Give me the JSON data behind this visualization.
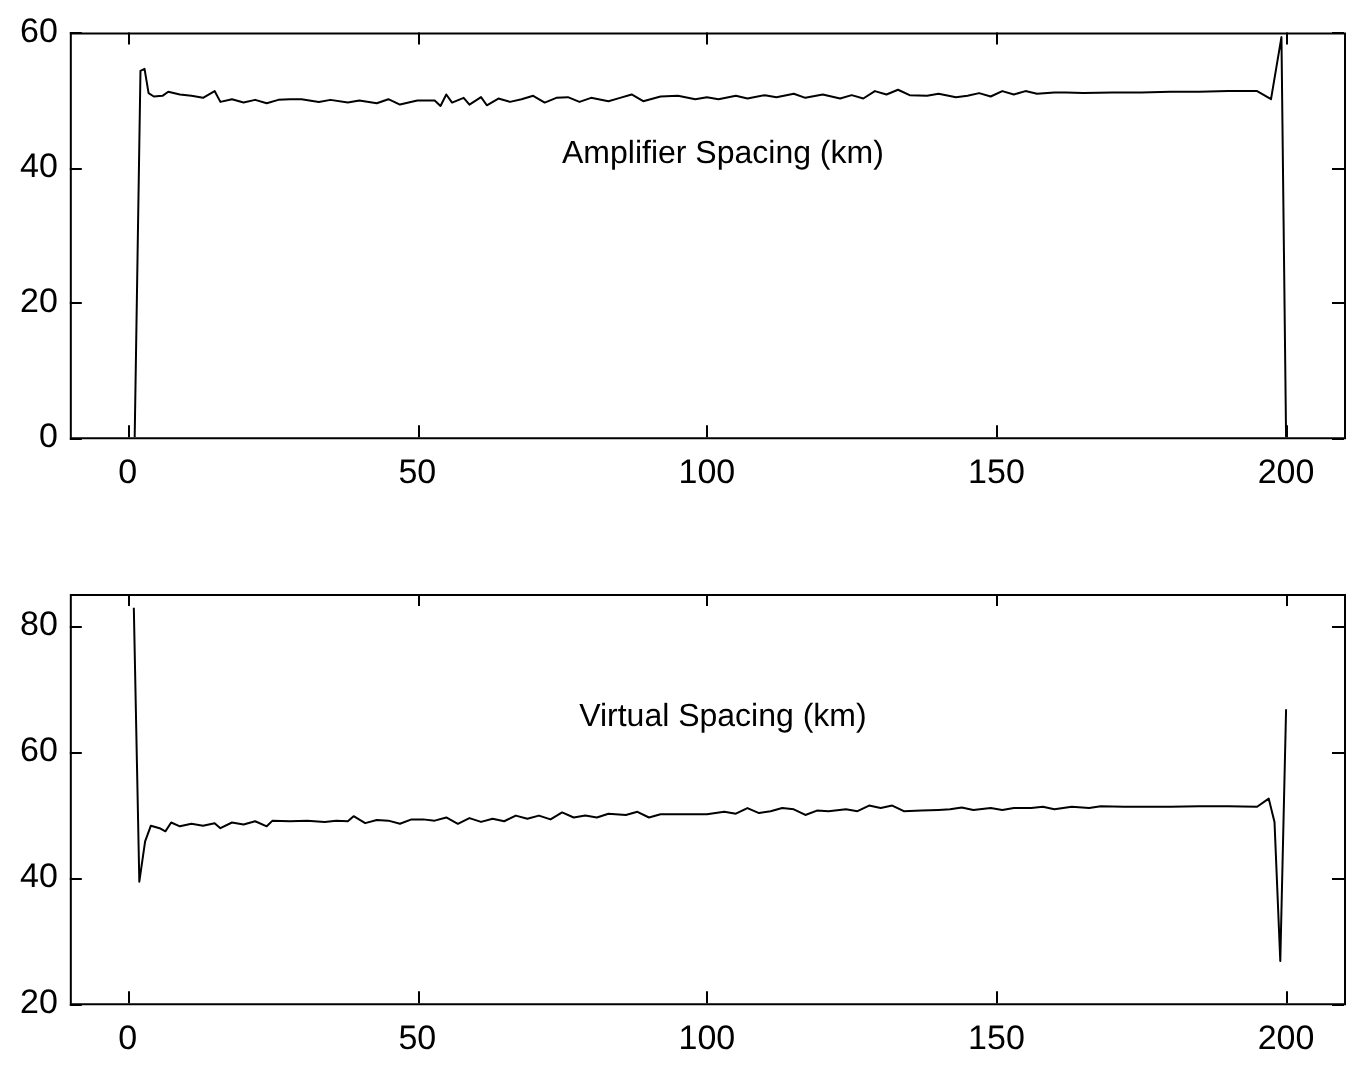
{
  "chart_data": [
    {
      "type": "line",
      "title": "Amplifier Spacing (km)",
      "color": "#000000",
      "marker": "none",
      "grid": false,
      "legend": false,
      "xlim": [
        -10,
        210
      ],
      "xticks": [
        0,
        50,
        100,
        150,
        200
      ],
      "ylim": [
        0,
        60
      ],
      "yticks": [
        0,
        20,
        40,
        60
      ],
      "x": [
        1.2,
        2.2,
        2.9,
        3.6,
        4.5,
        6,
        7,
        9,
        11,
        13,
        15,
        16,
        18,
        20,
        22,
        24,
        26,
        28,
        30,
        33,
        35,
        38,
        40,
        43,
        45,
        47,
        50,
        53,
        54,
        55,
        56,
        58,
        59,
        61,
        62,
        64,
        66,
        68,
        70,
        72,
        74,
        76,
        78,
        80,
        83,
        85,
        87,
        89,
        92,
        95,
        98,
        100,
        102,
        105,
        107,
        110,
        112,
        115,
        117,
        120,
        123,
        125,
        127,
        129,
        131,
        133,
        135,
        138,
        140,
        143,
        145,
        147,
        149,
        151,
        153,
        155,
        157,
        160,
        162,
        165,
        170,
        175,
        180,
        185,
        190,
        195,
        197.4,
        199.2,
        200
      ],
      "values": [
        0,
        54.3,
        54.6,
        51,
        50.5,
        50.6,
        51.2,
        50.8,
        50.6,
        50.3,
        51.3,
        49.7,
        50.1,
        49.6,
        50,
        49.5,
        50,
        50.1,
        50.1,
        49.7,
        50,
        49.6,
        49.9,
        49.5,
        50.1,
        49.3,
        49.9,
        49.9,
        49.1,
        50.8,
        49.6,
        50.3,
        49.3,
        50.4,
        49.2,
        50.2,
        49.7,
        50.1,
        50.6,
        49.6,
        50.3,
        50.4,
        49.7,
        50.3,
        49.8,
        50.3,
        50.8,
        49.8,
        50.5,
        50.6,
        50.1,
        50.4,
        50.1,
        50.6,
        50.2,
        50.7,
        50.4,
        50.9,
        50.3,
        50.8,
        50.2,
        50.7,
        50.2,
        51.3,
        50.8,
        51.5,
        50.7,
        50.6,
        50.9,
        50.4,
        50.6,
        51,
        50.5,
        51.3,
        50.8,
        51.3,
        50.9,
        51.1,
        51.1,
        51,
        51.1,
        51.1,
        51.2,
        51.2,
        51.3,
        51.3,
        50.1,
        59.3,
        0
      ]
    },
    {
      "type": "line",
      "title": "Virtual Spacing (km)",
      "color": "#000000",
      "marker": "none",
      "grid": false,
      "legend": false,
      "xlim": [
        -10,
        210
      ],
      "xticks": [
        0,
        50,
        100,
        150,
        200
      ],
      "ylim": [
        20,
        85
      ],
      "yticks": [
        20,
        40,
        60,
        80
      ],
      "x": [
        1.05,
        2,
        3,
        4,
        5.5,
        6.5,
        7.5,
        9,
        11,
        13,
        15,
        16,
        18,
        20,
        22,
        24,
        25,
        28,
        31,
        34,
        36,
        38,
        39,
        41,
        43,
        45,
        47,
        49,
        51,
        53,
        55,
        57,
        59,
        61,
        63,
        65,
        67,
        69,
        71,
        73,
        75,
        77,
        79,
        81,
        83,
        86,
        88,
        90,
        92,
        95,
        98,
        100,
        103,
        105,
        107,
        109,
        111,
        113,
        115,
        117,
        119,
        121,
        124,
        126,
        128,
        130,
        132,
        134,
        137,
        140,
        142,
        144,
        146,
        149,
        151,
        153,
        156,
        158,
        160,
        163,
        166,
        168,
        172,
        175,
        180,
        185,
        190,
        195,
        197,
        198,
        199,
        200
      ],
      "values": [
        82.8,
        39.3,
        45.7,
        48.2,
        47.8,
        47.3,
        48.7,
        48.1,
        48.5,
        48.2,
        48.6,
        47.8,
        48.7,
        48.4,
        48.9,
        48.1,
        49,
        48.9,
        49,
        48.8,
        49,
        48.9,
        49.7,
        48.6,
        49.1,
        49,
        48.5,
        49.2,
        49.2,
        49,
        49.5,
        48.5,
        49.4,
        48.8,
        49.3,
        48.9,
        49.8,
        49.3,
        49.8,
        49.2,
        50.3,
        49.5,
        49.8,
        49.5,
        50.1,
        49.9,
        50.4,
        49.5,
        50,
        50,
        50,
        50,
        50.4,
        50.1,
        51,
        50.2,
        50.5,
        51,
        50.8,
        49.9,
        50.6,
        50.5,
        50.8,
        50.5,
        51.4,
        51,
        51.4,
        50.5,
        50.6,
        50.7,
        50.8,
        51.1,
        50.7,
        51,
        50.7,
        51,
        51,
        51.2,
        50.8,
        51.2,
        51,
        51.3,
        51.2,
        51.2,
        51.2,
        51.3,
        51.3,
        51.2,
        52.5,
        48.8,
        26.7,
        66.7
      ]
    }
  ]
}
